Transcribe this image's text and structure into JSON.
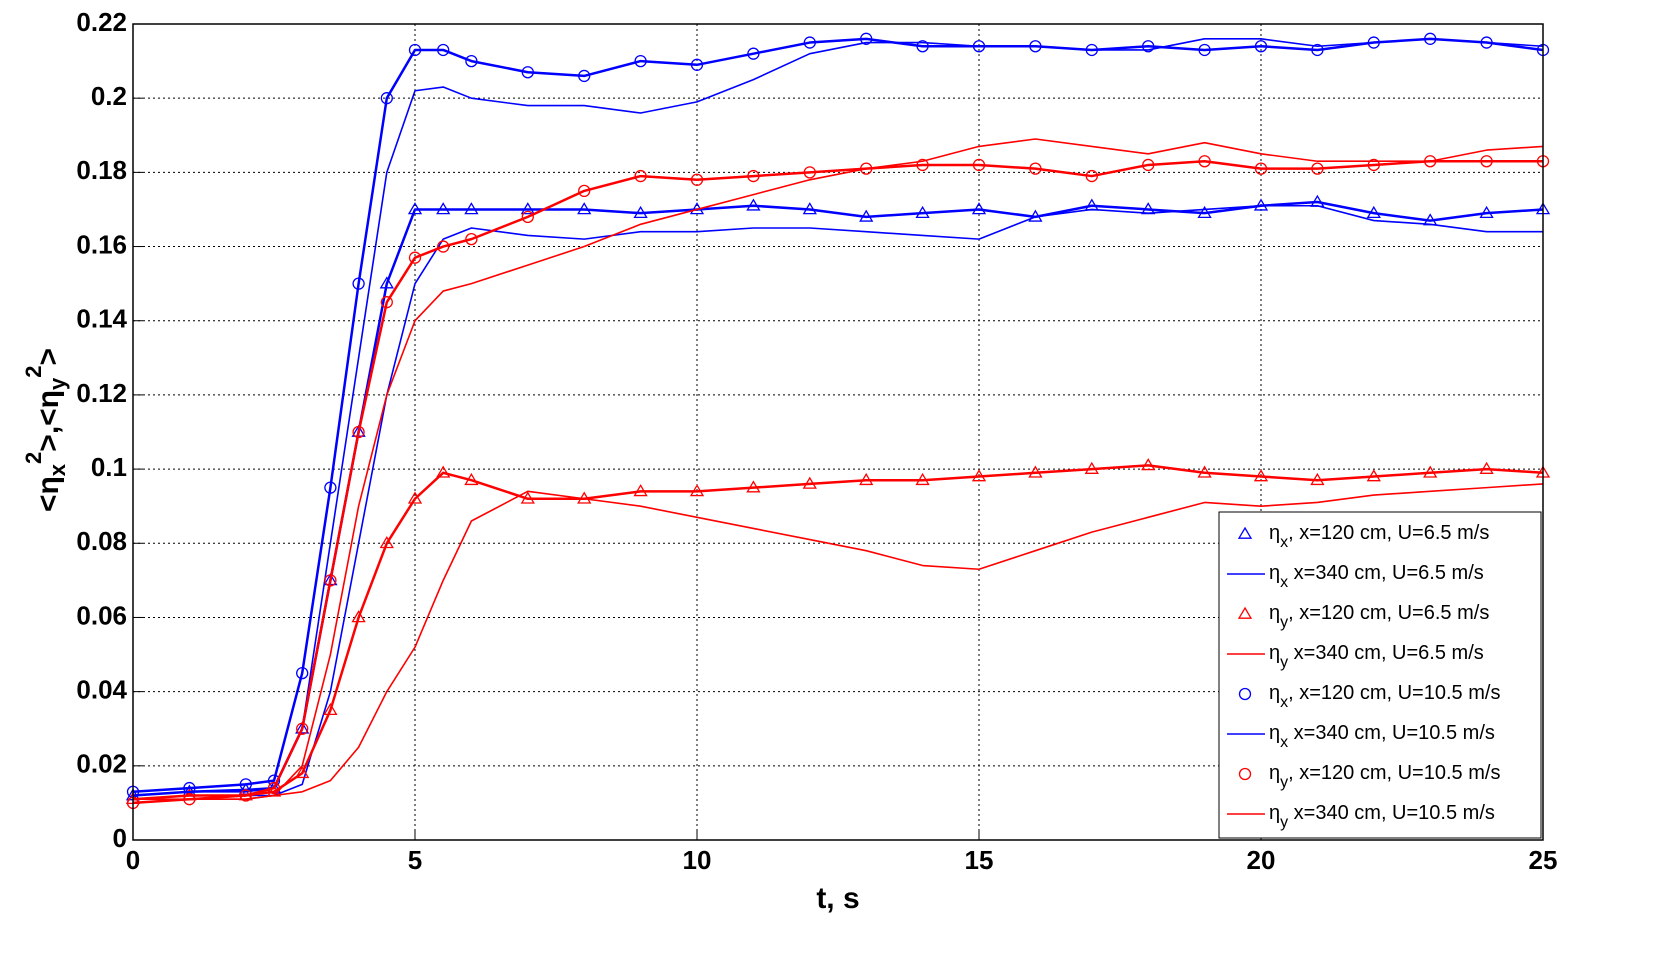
{
  "chart_data": {
    "type": "line",
    "xlabel": "t, s",
    "ylabel": "<ηx2>,<ηy2>",
    "x": [
      0,
      1,
      2,
      2.5,
      3,
      3.5,
      4,
      4.5,
      5,
      5.5,
      6,
      7,
      8,
      9,
      10,
      11,
      12,
      13,
      14,
      15,
      16,
      17,
      18,
      19,
      20,
      21,
      22,
      23,
      24,
      25
    ],
    "xlim": [
      0,
      25
    ],
    "xticks": [
      0,
      5,
      10,
      15,
      20,
      25
    ],
    "ylim": [
      0,
      0.22
    ],
    "yticks": [
      0,
      0.02,
      0.04,
      0.06,
      0.08,
      0.1,
      0.12,
      0.14,
      0.16,
      0.18,
      0.2,
      0.22
    ],
    "grid": true,
    "legend": "lower right",
    "series": [
      {
        "name": "ηx, x=120 cm, U=6.5 m/s",
        "color": "#0000ff",
        "marker": "triangle",
        "values": [
          0.012,
          0.013,
          0.0135,
          0.014,
          0.03,
          0.07,
          0.11,
          0.15,
          0.17,
          0.17,
          0.17,
          0.17,
          0.17,
          0.169,
          0.17,
          0.171,
          0.17,
          0.168,
          0.169,
          0.17,
          0.168,
          0.171,
          0.17,
          0.169,
          0.171,
          0.172,
          0.169,
          0.167,
          0.169,
          0.17
        ]
      },
      {
        "name": "ηx x=340 cm, U=6.5 m/s",
        "color": "#0000ff",
        "values": [
          0.011,
          0.012,
          0.012,
          0.012,
          0.015,
          0.04,
          0.08,
          0.12,
          0.15,
          0.162,
          0.165,
          0.163,
          0.162,
          0.164,
          0.164,
          0.165,
          0.165,
          0.164,
          0.163,
          0.162,
          0.168,
          0.17,
          0.169,
          0.17,
          0.171,
          0.171,
          0.167,
          0.166,
          0.164,
          0.164
        ]
      },
      {
        "name": "ηy, x=120 cm, U=6.5 m/s",
        "color": "#ff0000",
        "marker": "triangle",
        "values": [
          0.011,
          0.012,
          0.012,
          0.013,
          0.018,
          0.035,
          0.06,
          0.08,
          0.092,
          0.099,
          0.097,
          0.092,
          0.092,
          0.094,
          0.094,
          0.095,
          0.096,
          0.097,
          0.097,
          0.098,
          0.099,
          0.1,
          0.101,
          0.099,
          0.098,
          0.097,
          0.098,
          0.099,
          0.1,
          0.099
        ]
      },
      {
        "name": "ηy x=340 cm, U=6.5 m/s",
        "color": "#ff0000",
        "values": [
          0.011,
          0.011,
          0.011,
          0.012,
          0.013,
          0.016,
          0.025,
          0.04,
          0.052,
          0.07,
          0.086,
          0.094,
          0.092,
          0.09,
          0.087,
          0.084,
          0.081,
          0.078,
          0.074,
          0.073,
          0.078,
          0.083,
          0.087,
          0.091,
          0.09,
          0.091,
          0.093,
          0.094,
          0.095,
          0.096
        ]
      },
      {
        "name": "ηx, x=120 cm, U=10.5 m/s",
        "color": "#0000ff",
        "marker": "circle",
        "values": [
          0.013,
          0.014,
          0.015,
          0.016,
          0.045,
          0.095,
          0.15,
          0.2,
          0.213,
          0.213,
          0.21,
          0.207,
          0.206,
          0.21,
          0.209,
          0.212,
          0.215,
          0.216,
          0.214,
          0.214,
          0.214,
          0.213,
          0.214,
          0.213,
          0.214,
          0.213,
          0.215,
          0.216,
          0.215,
          0.213
        ]
      },
      {
        "name": "ηx x=340 cm, U=10.5 m/s",
        "color": "#0000ff",
        "values": [
          0.012,
          0.013,
          0.013,
          0.014,
          0.03,
          0.08,
          0.13,
          0.18,
          0.202,
          0.203,
          0.2,
          0.198,
          0.198,
          0.196,
          0.199,
          0.205,
          0.212,
          0.215,
          0.215,
          0.214,
          0.214,
          0.213,
          0.213,
          0.216,
          0.216,
          0.214,
          0.215,
          0.216,
          0.215,
          0.214
        ]
      },
      {
        "name": "ηy, x=120 cm, U=10.5 m/s",
        "color": "#ff0000",
        "marker": "circle",
        "values": [
          0.01,
          0.011,
          0.012,
          0.014,
          0.03,
          0.07,
          0.11,
          0.145,
          0.157,
          0.16,
          0.162,
          0.168,
          0.175,
          0.179,
          0.178,
          0.179,
          0.18,
          0.181,
          0.182,
          0.182,
          0.181,
          0.179,
          0.182,
          0.183,
          0.181,
          0.181,
          0.182,
          0.183,
          0.183,
          0.183
        ]
      },
      {
        "name": "ηy x=340 cm, U=10.5 m/s",
        "color": "#ff0000",
        "values": [
          0.01,
          0.011,
          0.011,
          0.012,
          0.02,
          0.05,
          0.09,
          0.12,
          0.14,
          0.148,
          0.15,
          0.155,
          0.16,
          0.166,
          0.17,
          0.174,
          0.178,
          0.181,
          0.183,
          0.187,
          0.189,
          0.187,
          0.185,
          0.188,
          0.185,
          0.183,
          0.183,
          0.183,
          0.186,
          0.187
        ]
      }
    ]
  }
}
